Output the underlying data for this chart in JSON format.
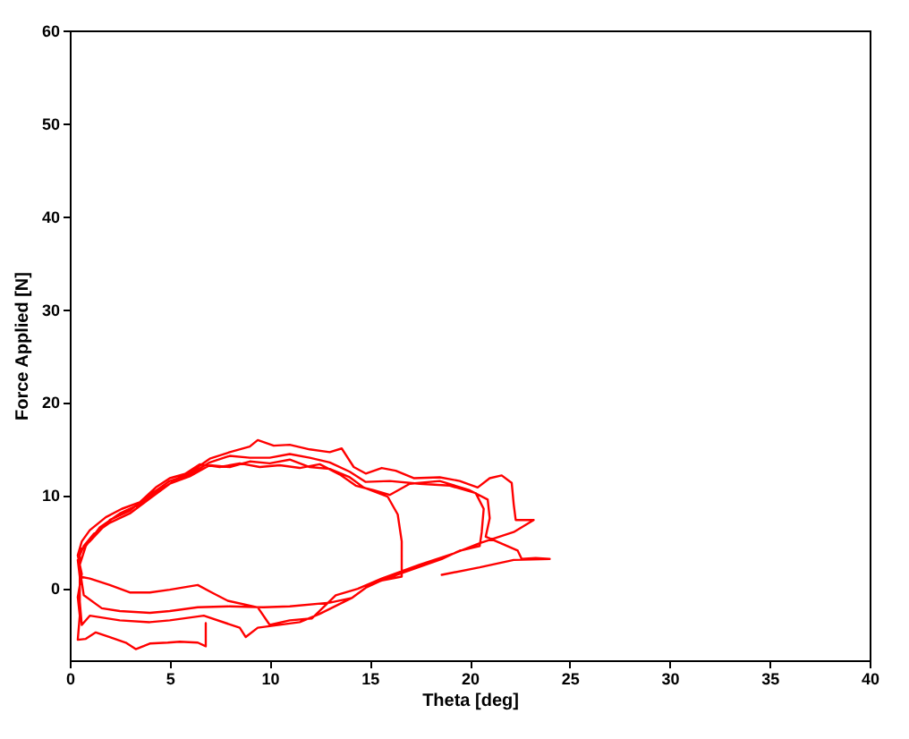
{
  "chart_data": {
    "type": "line",
    "xlabel": "Theta [deg]",
    "ylabel": "Force Applied [N]",
    "xlim": [
      0,
      40
    ],
    "ylim": [
      -7.8,
      60
    ],
    "xticks": [
      0,
      5,
      10,
      15,
      20,
      25,
      30,
      35,
      40
    ],
    "yticks": [
      0,
      10,
      20,
      30,
      40,
      50,
      60
    ],
    "grid": false,
    "marker": "none",
    "line_style": "solid",
    "series": [
      {
        "color": "#ff0000",
        "x": [
          6.8,
          6.8,
          6.4,
          5.5,
          4.9,
          4.0,
          3.3,
          2.8,
          2.0,
          1.3,
          0.8,
          0.4,
          0.5,
          0.4,
          0.6,
          0.4,
          0.6,
          1.0,
          1.8,
          2.6,
          3.5,
          4.3,
          5.0,
          6.0,
          7.0,
          8.0,
          9.0,
          9.4,
          10.2,
          11.0,
          12.0,
          13.0,
          13.6,
          14.2,
          14.8,
          15.6,
          16.3,
          17.2,
          18.5,
          19.5,
          20.4,
          21.0,
          21.6,
          22.1,
          22.2,
          22.3,
          23.2,
          22.2,
          20.5,
          19.2,
          17.5,
          15.6,
          14.4,
          13.3,
          12.1,
          11.0,
          10.0,
          9.4,
          7.9,
          7.1,
          6.4,
          5.0,
          4.0,
          3.0,
          2.0,
          1.0,
          0.5,
          0.4,
          0.7,
          1.2,
          2.0,
          3.0,
          4.0,
          5.0,
          6.0,
          7.0,
          8.0,
          9.0,
          10.0,
          11.0,
          12.0,
          13.0,
          14.0,
          14.7,
          15.9,
          16.4,
          16.6,
          16.6,
          16.6,
          15.6,
          14.8,
          14.1,
          13.0,
          11.0,
          9.7,
          8.0,
          6.4,
          5.0,
          4.0,
          2.5,
          1.6,
          0.7,
          0.5,
          0.5,
          1.0,
          2.0,
          3.0,
          4.0,
          5.0,
          6.0,
          7.0,
          8.0,
          9.0,
          10.0,
          11.0,
          12.0,
          13.0,
          14.0,
          14.8,
          16.0,
          17.5,
          19.0,
          20.3,
          20.7,
          20.6,
          20.5,
          19.5,
          18.6,
          16.5,
          15.0,
          14.1,
          12.5,
          11.5,
          9.4,
          8.8,
          8.5,
          6.7,
          5.0,
          4.0,
          2.5,
          1.0,
          0.6,
          0.5,
          0.5,
          0.8,
          1.5,
          2.5,
          3.5,
          4.5,
          5.5,
          6.5,
          7.5,
          8.5,
          9.5,
          10.5,
          11.5,
          12.5,
          13.5,
          14.3,
          15.2,
          16.0,
          17.0,
          18.5,
          20.0,
          20.9,
          21.0,
          20.8,
          22.4,
          22.6,
          23.3,
          24.0,
          22.2,
          20.5,
          18.6
        ],
        "values": [
          -3.8,
          -6.3,
          -5.9,
          -5.8,
          -5.9,
          -6.0,
          -6.6,
          -5.9,
          -5.3,
          -4.8,
          -5.5,
          -5.6,
          -3.0,
          -1.0,
          1.5,
          3.5,
          5.0,
          6.2,
          7.6,
          8.5,
          9.2,
          10.8,
          11.8,
          12.4,
          13.9,
          14.6,
          15.2,
          15.9,
          15.3,
          15.4,
          14.9,
          14.6,
          15.0,
          13.0,
          12.3,
          12.9,
          12.6,
          11.8,
          11.9,
          11.5,
          10.8,
          11.8,
          12.1,
          11.3,
          9.0,
          7.3,
          7.3,
          6.0,
          4.8,
          3.7,
          2.5,
          1.0,
          -0.1,
          -0.8,
          -3.3,
          -3.5,
          -4.0,
          -2.1,
          -1.4,
          -0.5,
          0.3,
          -0.2,
          -0.5,
          -0.5,
          0.3,
          1.0,
          1.2,
          3.0,
          4.5,
          5.8,
          7.0,
          8.0,
          9.6,
          11.2,
          12.0,
          13.2,
          13.0,
          13.6,
          13.4,
          13.8,
          13.0,
          12.8,
          11.9,
          10.8,
          9.8,
          7.9,
          5.0,
          2.0,
          1.2,
          0.8,
          0.0,
          -1.1,
          -1.6,
          -2.0,
          -2.1,
          -2.0,
          -2.1,
          -2.5,
          -2.7,
          -2.5,
          -2.2,
          -0.8,
          2.0,
          4.0,
          5.0,
          7.3,
          8.3,
          10.0,
          11.5,
          12.2,
          13.5,
          14.2,
          14.0,
          14.0,
          14.4,
          14.0,
          13.5,
          12.5,
          11.4,
          11.5,
          11.2,
          11.0,
          10.2,
          8.5,
          6.0,
          4.5,
          4.0,
          3.1,
          1.5,
          0.3,
          -1.1,
          -2.8,
          -3.7,
          -4.3,
          -5.3,
          -4.3,
          -3.0,
          -3.5,
          -3.7,
          -3.5,
          -3.0,
          -4.0,
          -1.5,
          2.5,
          4.5,
          6.5,
          8.0,
          9.0,
          10.5,
          11.9,
          13.3,
          13.0,
          13.4,
          13.0,
          13.2,
          12.9,
          13.3,
          12.2,
          11.0,
          10.5,
          10.0,
          11.2,
          11.5,
          10.5,
          9.5,
          7.5,
          5.5,
          4.0,
          3.1,
          3.2,
          3.1,
          3.0,
          2.2,
          1.4
        ]
      }
    ]
  }
}
